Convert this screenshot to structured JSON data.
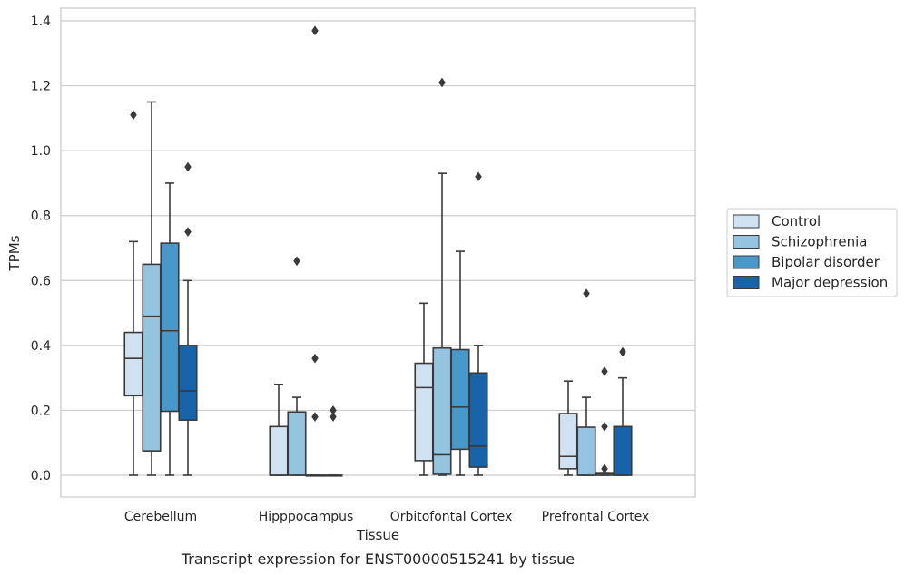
{
  "caption": "Transcript expression for ENST00000515241 by tissue",
  "chart_data": {
    "type": "boxplot",
    "xlabel": "Tissue",
    "ylabel": "TPMs",
    "ylim": [
      -0.065,
      1.44
    ],
    "yticks": [
      "0.0",
      "0.2",
      "0.4",
      "0.6",
      "0.8",
      "1.0",
      "1.2",
      "1.4"
    ],
    "grid": true,
    "legend_position": "right",
    "categories": [
      "Cerebellum",
      "Hipppocampus",
      "Orbitofontal Cortex",
      "Prefrontal Cortex"
    ],
    "series": [
      {
        "name": "Control",
        "color": "#d0e1f2",
        "boxes": [
          {
            "whisker_low": 0.0,
            "q1": 0.245,
            "median": 0.36,
            "q3": 0.44,
            "whisker_high": 0.72,
            "outliers": [
              1.11
            ]
          },
          {
            "whisker_low": 0.0,
            "q1": 0.0,
            "median": 0.0,
            "q3": 0.15,
            "whisker_high": 0.28,
            "outliers": []
          },
          {
            "whisker_low": 0.0,
            "q1": 0.045,
            "median": 0.27,
            "q3": 0.345,
            "whisker_high": 0.53,
            "outliers": []
          },
          {
            "whisker_low": 0.0,
            "q1": 0.02,
            "median": 0.058,
            "q3": 0.19,
            "whisker_high": 0.29,
            "outliers": []
          }
        ]
      },
      {
        "name": "Schizophrenia",
        "color": "#94c4df",
        "boxes": [
          {
            "whisker_low": 0.0,
            "q1": 0.075,
            "median": 0.49,
            "q3": 0.65,
            "whisker_high": 1.15,
            "outliers": []
          },
          {
            "whisker_low": 0.0,
            "q1": 0.0,
            "median": 0.0,
            "q3": 0.195,
            "whisker_high": 0.24,
            "outliers": [
              0.66
            ]
          },
          {
            "whisker_low": 0.0,
            "q1": 0.003,
            "median": 0.063,
            "q3": 0.392,
            "whisker_high": 0.93,
            "outliers": [
              1.21
            ]
          },
          {
            "whisker_low": 0.0,
            "q1": 0.0,
            "median": 0.0,
            "q3": 0.148,
            "whisker_high": 0.24,
            "outliers": [
              0.56
            ]
          }
        ]
      },
      {
        "name": "Bipolar disorder",
        "color": "#4a98c9",
        "boxes": [
          {
            "whisker_low": 0.0,
            "q1": 0.197,
            "median": 0.445,
            "q3": 0.715,
            "whisker_high": 0.9,
            "outliers": []
          },
          {
            "whisker_low": 0.0,
            "q1": 0.0,
            "median": 0.0,
            "q3": 0.0,
            "whisker_high": 0.0,
            "outliers": [
              1.37,
              0.36,
              0.18
            ]
          },
          {
            "whisker_low": 0.0,
            "q1": 0.08,
            "median": 0.21,
            "q3": 0.387,
            "whisker_high": 0.69,
            "outliers": []
          },
          {
            "whisker_low": 0.0,
            "q1": 0.0,
            "median": 0.005,
            "q3": 0.008,
            "whisker_high": 0.008,
            "outliers": [
              0.32,
              0.15,
              0.02
            ]
          }
        ]
      },
      {
        "name": "Major depression",
        "color": "#1764ab",
        "boxes": [
          {
            "whisker_low": 0.0,
            "q1": 0.17,
            "median": 0.26,
            "q3": 0.4,
            "whisker_high": 0.6,
            "outliers": [
              0.95,
              0.75
            ]
          },
          {
            "whisker_low": 0.0,
            "q1": 0.0,
            "median": 0.0,
            "q3": 0.0,
            "whisker_high": 0.0,
            "outliers": [
              0.2,
              0.18
            ]
          },
          {
            "whisker_low": 0.0,
            "q1": 0.025,
            "median": 0.09,
            "q3": 0.315,
            "whisker_high": 0.4,
            "outliers": [
              0.92
            ]
          },
          {
            "whisker_low": 0.0,
            "q1": 0.0,
            "median": 0.0,
            "q3": 0.15,
            "whisker_high": 0.3,
            "outliers": [
              0.38
            ]
          }
        ]
      }
    ]
  }
}
